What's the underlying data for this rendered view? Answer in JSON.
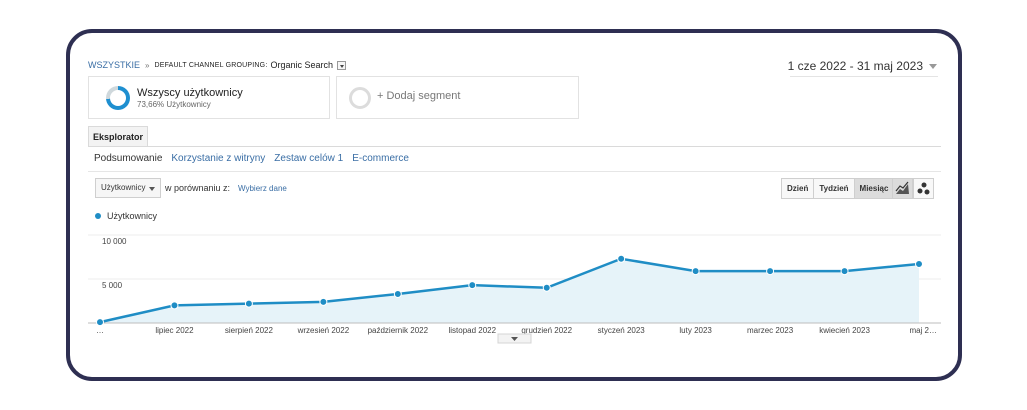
{
  "breadcrumb": {
    "root": "WSZYSTKIE",
    "separator": "»",
    "dimension_key": "DEFAULT CHANNEL GROUPING:",
    "dimension_value": "Organic Search"
  },
  "date_range": "1 cze 2022 - 31 maj 2023",
  "segments": {
    "all_users": {
      "title": "Wszyscy użytkownicy",
      "subtitle": "73,66% Użytkownicy",
      "share": 0.7366
    },
    "add_segment": {
      "label": "+ Dodaj segment"
    }
  },
  "tabs": {
    "explorer": "Eksplorator"
  },
  "subtabs": [
    "Podsumowanie",
    "Korzystanie z witryny",
    "Zestaw celów 1",
    "E-commerce"
  ],
  "metric_selector": {
    "selected": "Użytkownicy",
    "compare_label": "w porównaniu z:",
    "compare_link": "Wybierz dane"
  },
  "period_buttons": [
    "Dzień",
    "Tydzień",
    "Miesiąc"
  ],
  "active_period": "Miesiąc",
  "view_icons": {
    "line": "line-chart-icon",
    "motion": "motion-chart-icon"
  },
  "colors": {
    "series": "#1f8dc5",
    "area": "#e6f3f9",
    "link": "#3a6ea5",
    "frame": "#2e2f52"
  },
  "chart_data": {
    "type": "area",
    "x": [
      "…",
      "lipiec 2022",
      "sierpień 2022",
      "wrzesień 2022",
      "październik 2022",
      "listopad 2022",
      "grudzień 2022",
      "styczeń 2023",
      "luty 2023",
      "marzec 2023",
      "kwiecień 2023",
      "maj 2…"
    ],
    "series": [
      {
        "name": "Użytkownicy",
        "values": [
          100,
          2000,
          2200,
          2400,
          3300,
          4300,
          4000,
          7300,
          5900,
          5900,
          5900,
          6700
        ]
      }
    ],
    "y_tick_labels": [
      "10 000",
      "5 000"
    ],
    "y_ticks": [
      10000,
      5000
    ],
    "ylim": [
      0,
      10000
    ],
    "grid": true,
    "legend": "top-left"
  }
}
